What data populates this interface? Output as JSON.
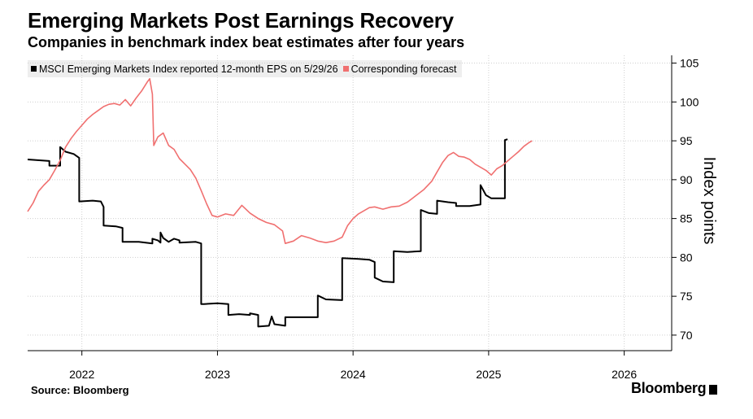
{
  "header": {
    "title": "Emerging Markets Post Earnings Recovery",
    "subtitle": "Companies in benchmark index beat estimates after four years"
  },
  "footer": {
    "source": "Source: Bloomberg",
    "brand": "Bloomberg"
  },
  "colors": {
    "eps": "#000000",
    "forecast": "#f07070",
    "grid": "#cccccc",
    "legend_bg": "#eeeeee"
  },
  "chart_data": {
    "type": "line",
    "title": "Emerging Markets Post Earnings Recovery",
    "subtitle": "Companies in benchmark index beat estimates after four years",
    "ylabel": "Index points",
    "ylim": [
      68,
      106
    ],
    "yticks": [
      70,
      75,
      80,
      85,
      90,
      95,
      100,
      105
    ],
    "xlim": [
      2021.6,
      2026.35
    ],
    "xticks": [
      {
        "label": "2022",
        "value": 2022.0
      },
      {
        "label": "2023",
        "value": 2023.0
      },
      {
        "label": "2024",
        "value": 2024.0
      },
      {
        "label": "2025",
        "value": 2025.0
      },
      {
        "label": "2026",
        "value": 2026.0
      }
    ],
    "grid": true,
    "legend_position": "top-left",
    "series": [
      {
        "name": "MSCI Emerging Markets Index reported 12-month EPS on 5/29/26",
        "color": "#000000",
        "step": true,
        "points": [
          [
            2021.6,
            92.6
          ],
          [
            2021.76,
            92.4
          ],
          [
            2021.76,
            91.8
          ],
          [
            2021.84,
            91.8
          ],
          [
            2021.84,
            94.2
          ],
          [
            2021.88,
            93.6
          ],
          [
            2021.94,
            93.3
          ],
          [
            2021.98,
            92.8
          ],
          [
            2021.98,
            87.2
          ],
          [
            2022.08,
            87.3
          ],
          [
            2022.14,
            87.2
          ],
          [
            2022.16,
            86.5
          ],
          [
            2022.16,
            84.1
          ],
          [
            2022.25,
            84.0
          ],
          [
            2022.3,
            83.8
          ],
          [
            2022.3,
            82.0
          ],
          [
            2022.42,
            82.0
          ],
          [
            2022.52,
            81.8
          ],
          [
            2022.52,
            82.4
          ],
          [
            2022.56,
            82.2
          ],
          [
            2022.58,
            81.9
          ],
          [
            2022.58,
            83.2
          ],
          [
            2022.6,
            82.5
          ],
          [
            2022.64,
            82.0
          ],
          [
            2022.68,
            82.4
          ],
          [
            2022.72,
            82.2
          ],
          [
            2022.72,
            81.9
          ],
          [
            2022.84,
            82.0
          ],
          [
            2022.88,
            81.8
          ],
          [
            2022.88,
            74.0
          ],
          [
            2022.9,
            74.0
          ],
          [
            2023.0,
            74.1
          ],
          [
            2023.08,
            74.0
          ],
          [
            2023.08,
            72.6
          ],
          [
            2023.16,
            72.7
          ],
          [
            2023.24,
            72.6
          ],
          [
            2023.24,
            72.8
          ],
          [
            2023.3,
            72.6
          ],
          [
            2023.3,
            71.1
          ],
          [
            2023.38,
            71.2
          ],
          [
            2023.4,
            72.4
          ],
          [
            2023.42,
            71.4
          ],
          [
            2023.5,
            71.2
          ],
          [
            2023.5,
            72.3
          ],
          [
            2023.62,
            72.3
          ],
          [
            2023.74,
            72.3
          ],
          [
            2023.74,
            75.1
          ],
          [
            2023.8,
            74.6
          ],
          [
            2023.92,
            74.5
          ],
          [
            2023.92,
            79.9
          ],
          [
            2024.04,
            79.8
          ],
          [
            2024.12,
            79.7
          ],
          [
            2024.16,
            79.4
          ],
          [
            2024.16,
            77.4
          ],
          [
            2024.22,
            76.9
          ],
          [
            2024.3,
            76.8
          ],
          [
            2024.3,
            80.8
          ],
          [
            2024.4,
            80.7
          ],
          [
            2024.5,
            80.8
          ],
          [
            2024.5,
            86.1
          ],
          [
            2024.56,
            85.7
          ],
          [
            2024.62,
            85.6
          ],
          [
            2024.62,
            87.3
          ],
          [
            2024.7,
            87.1
          ],
          [
            2024.76,
            87.0
          ],
          [
            2024.76,
            86.6
          ],
          [
            2024.86,
            86.6
          ],
          [
            2024.94,
            86.8
          ],
          [
            2024.94,
            89.3
          ],
          [
            2024.98,
            88.0
          ],
          [
            2025.02,
            87.6
          ],
          [
            2025.02,
            87.6
          ],
          [
            2025.12,
            87.6
          ],
          [
            2025.12,
            95.1
          ],
          [
            2025.14,
            95.2
          ]
        ]
      },
      {
        "name": "Corresponding forecast",
        "color": "#f07070",
        "step": false,
        "points": [
          [
            2021.6,
            85.9
          ],
          [
            2021.64,
            87.0
          ],
          [
            2021.68,
            88.5
          ],
          [
            2021.72,
            89.3
          ],
          [
            2021.76,
            90.0
          ],
          [
            2021.8,
            91.2
          ],
          [
            2021.84,
            92.5
          ],
          [
            2021.88,
            94.2
          ],
          [
            2021.92,
            95.3
          ],
          [
            2021.96,
            96.2
          ],
          [
            2022.0,
            97.0
          ],
          [
            2022.04,
            97.8
          ],
          [
            2022.08,
            98.4
          ],
          [
            2022.12,
            98.9
          ],
          [
            2022.16,
            99.4
          ],
          [
            2022.2,
            99.7
          ],
          [
            2022.24,
            99.8
          ],
          [
            2022.28,
            99.6
          ],
          [
            2022.32,
            100.3
          ],
          [
            2022.36,
            99.5
          ],
          [
            2022.4,
            100.5
          ],
          [
            2022.44,
            101.4
          ],
          [
            2022.48,
            102.5
          ],
          [
            2022.5,
            103.0
          ],
          [
            2022.52,
            101.0
          ],
          [
            2022.53,
            94.4
          ],
          [
            2022.56,
            95.5
          ],
          [
            2022.6,
            96.0
          ],
          [
            2022.64,
            94.4
          ],
          [
            2022.68,
            93.9
          ],
          [
            2022.72,
            92.7
          ],
          [
            2022.76,
            92.0
          ],
          [
            2022.8,
            91.3
          ],
          [
            2022.84,
            90.2
          ],
          [
            2022.88,
            88.6
          ],
          [
            2022.92,
            86.9
          ],
          [
            2022.96,
            85.4
          ],
          [
            2023.0,
            85.2
          ],
          [
            2023.06,
            85.6
          ],
          [
            2023.12,
            85.4
          ],
          [
            2023.18,
            86.7
          ],
          [
            2023.24,
            85.7
          ],
          [
            2023.3,
            85.0
          ],
          [
            2023.36,
            84.5
          ],
          [
            2023.42,
            84.2
          ],
          [
            2023.48,
            83.4
          ],
          [
            2023.5,
            81.8
          ],
          [
            2023.56,
            82.1
          ],
          [
            2023.62,
            82.8
          ],
          [
            2023.68,
            82.5
          ],
          [
            2023.74,
            82.1
          ],
          [
            2023.8,
            81.9
          ],
          [
            2023.86,
            82.1
          ],
          [
            2023.92,
            82.6
          ],
          [
            2023.96,
            84.1
          ],
          [
            2024.0,
            85.0
          ],
          [
            2024.04,
            85.6
          ],
          [
            2024.08,
            86.0
          ],
          [
            2024.12,
            86.4
          ],
          [
            2024.16,
            86.5
          ],
          [
            2024.22,
            86.2
          ],
          [
            2024.28,
            86.5
          ],
          [
            2024.34,
            86.6
          ],
          [
            2024.4,
            87.1
          ],
          [
            2024.46,
            87.9
          ],
          [
            2024.52,
            88.7
          ],
          [
            2024.58,
            89.8
          ],
          [
            2024.62,
            91.0
          ],
          [
            2024.66,
            92.2
          ],
          [
            2024.7,
            93.1
          ],
          [
            2024.74,
            93.5
          ],
          [
            2024.78,
            93.0
          ],
          [
            2024.82,
            92.9
          ],
          [
            2024.86,
            92.6
          ],
          [
            2024.9,
            92.0
          ],
          [
            2024.94,
            91.6
          ],
          [
            2024.98,
            91.2
          ],
          [
            2025.02,
            90.6
          ],
          [
            2025.06,
            91.4
          ],
          [
            2025.1,
            91.8
          ],
          [
            2025.14,
            92.4
          ],
          [
            2025.18,
            93.0
          ],
          [
            2025.22,
            93.6
          ],
          [
            2025.26,
            94.3
          ],
          [
            2025.3,
            94.8
          ],
          [
            2025.32,
            95.0
          ]
        ]
      }
    ]
  }
}
